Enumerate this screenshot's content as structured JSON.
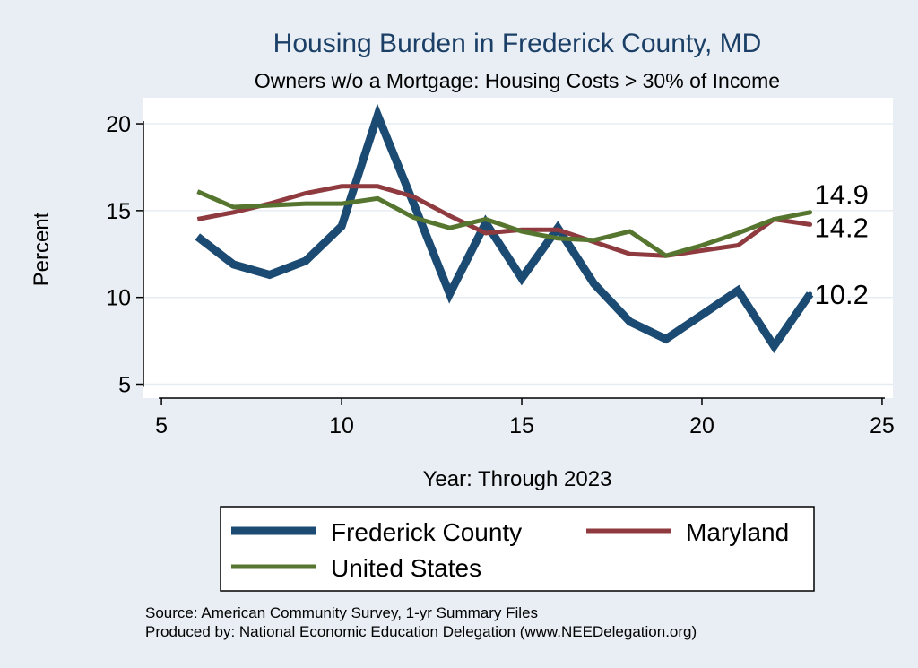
{
  "chart_data": {
    "type": "line",
    "title": "Housing Burden in Frederick County, MD",
    "subtitle": "Owners w/o a Mortgage: Housing Costs > 30% of Income",
    "xlabel": "Year: Through 2023",
    "ylabel": "Percent",
    "xlim": [
      4.5,
      25.3
    ],
    "ylim": [
      4.2,
      21.5
    ],
    "x_ticks": [
      5,
      10,
      15,
      20,
      25
    ],
    "y_ticks": [
      5,
      10,
      15,
      20
    ],
    "grid": true,
    "legend_position": "bottom",
    "series": [
      {
        "name": "Frederick County",
        "color": "#1b4a72",
        "width": 9,
        "x": [
          6,
          7,
          8,
          9,
          10,
          11,
          12,
          13,
          14,
          15,
          16,
          17,
          18,
          19,
          20,
          21,
          22,
          23
        ],
        "y": [
          13.5,
          11.9,
          11.3,
          12.1,
          14.1,
          20.5,
          15.4,
          10.2,
          14.3,
          11.1,
          14.0,
          10.8,
          8.6,
          7.6,
          9.0,
          10.4,
          7.2,
          10.2
        ],
        "end_label": "10.2"
      },
      {
        "name": "Maryland",
        "color": "#8e3a3f",
        "width": 5,
        "x": [
          6,
          7,
          8,
          9,
          10,
          11,
          12,
          13,
          14,
          15,
          16,
          17,
          18,
          19,
          20,
          21,
          22,
          23
        ],
        "y": [
          14.5,
          14.9,
          15.4,
          16.0,
          16.4,
          16.4,
          15.8,
          14.7,
          13.7,
          13.9,
          13.9,
          13.2,
          12.5,
          12.4,
          12.7,
          13.0,
          14.5,
          14.2
        ],
        "end_label": "14.2"
      },
      {
        "name": "United States",
        "color": "#56762f",
        "width": 5,
        "x": [
          6,
          7,
          8,
          9,
          10,
          11,
          12,
          13,
          14,
          15,
          16,
          17,
          18,
          19,
          20,
          21,
          22,
          23
        ],
        "y": [
          16.1,
          15.2,
          15.3,
          15.4,
          15.4,
          15.7,
          14.6,
          14.0,
          14.5,
          13.8,
          13.4,
          13.3,
          13.8,
          12.4,
          13.0,
          13.7,
          14.5,
          14.9
        ],
        "end_label": "14.9"
      }
    ],
    "source_lines": [
      "Source: American Community Survey, 1-yr Summary Files",
      "Produced by: National Economic Education Delegation (www.NEEDelegation.org)"
    ]
  }
}
